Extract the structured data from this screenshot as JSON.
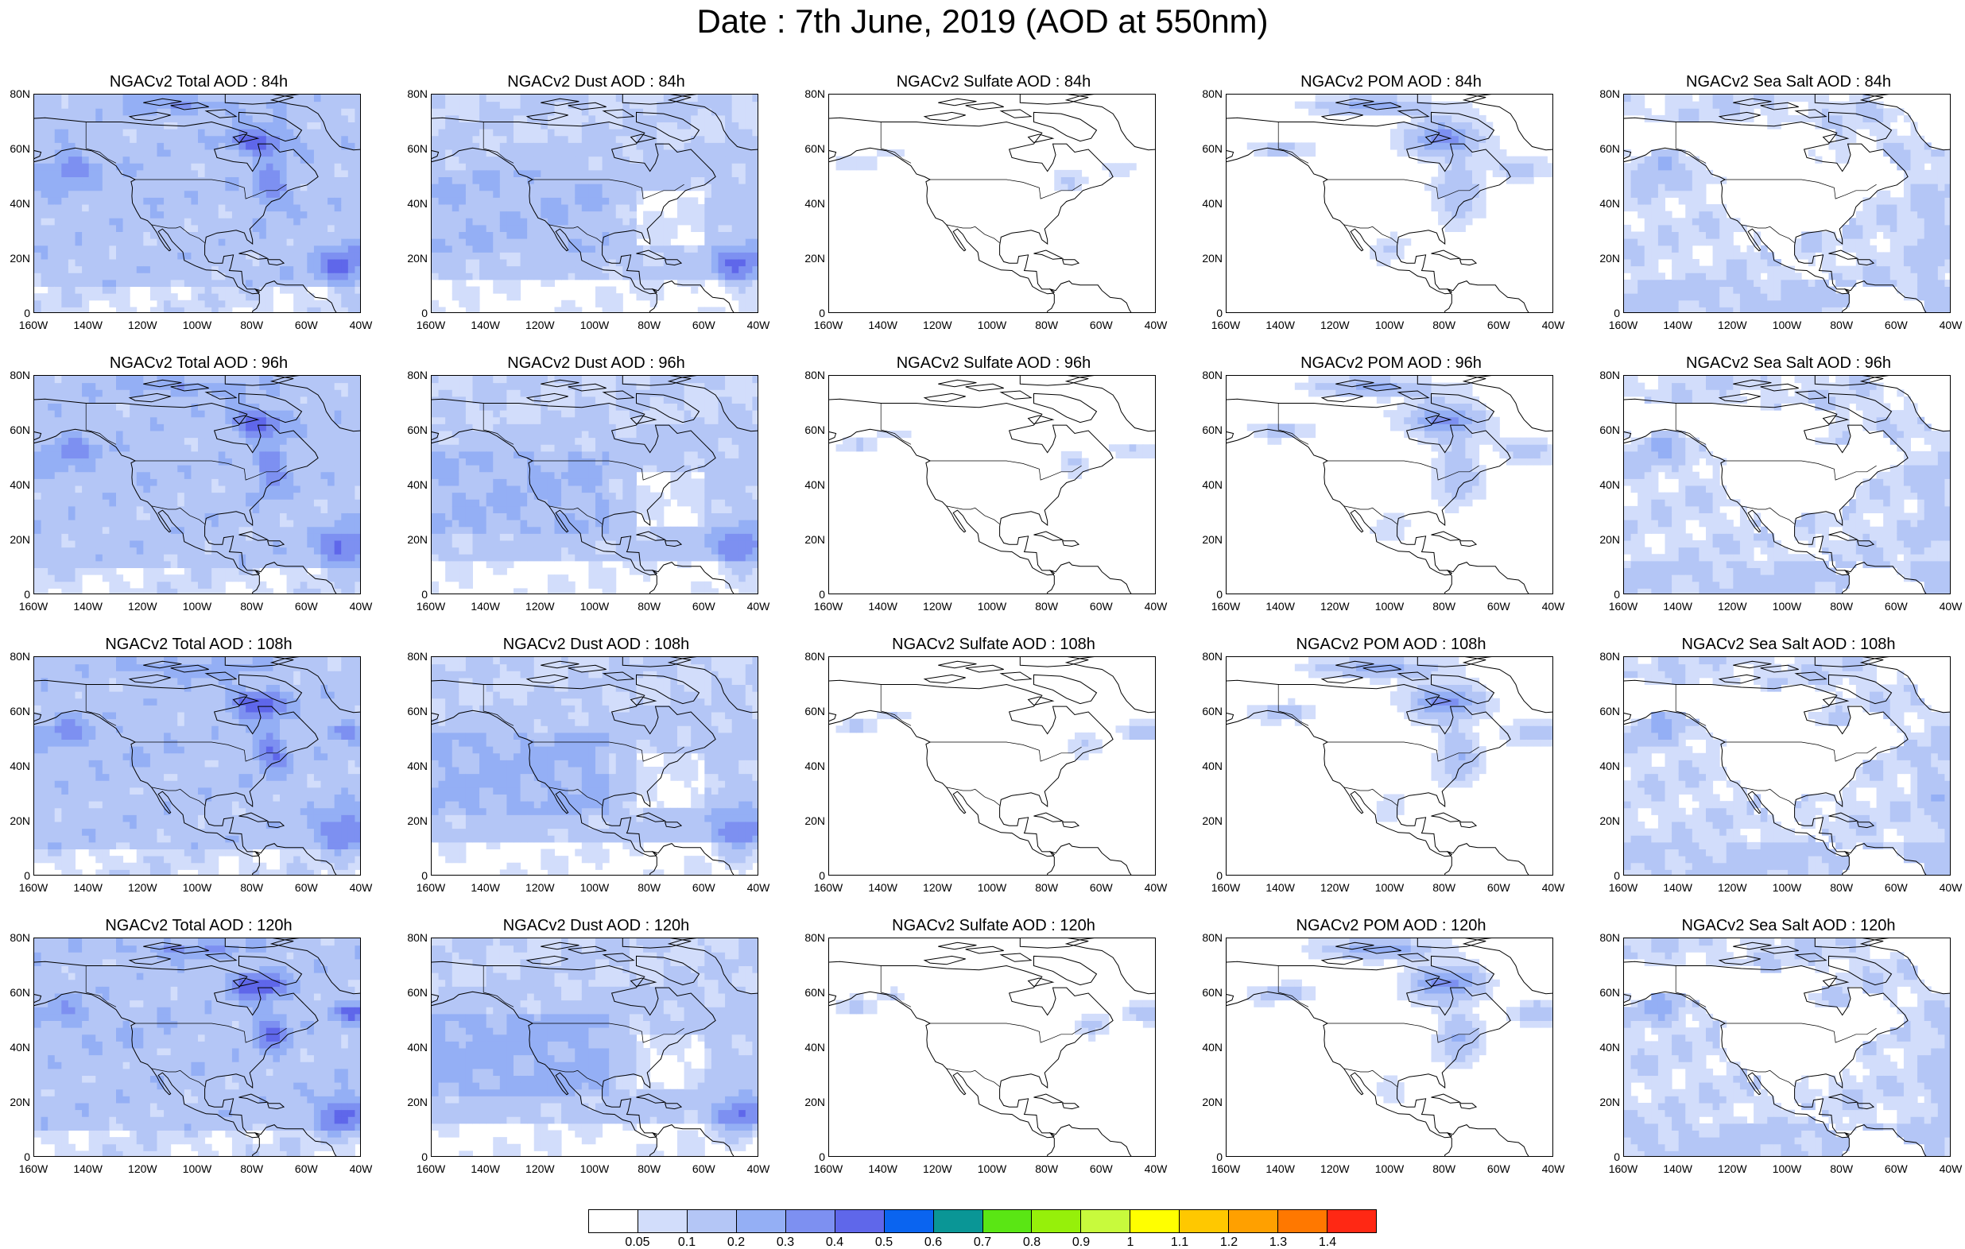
{
  "title": "Date : 7th June, 2019 (AOD at 550nm)",
  "lat_labels": [
    "80N",
    "60N",
    "40N",
    "20N",
    "0"
  ],
  "lon_labels": [
    "160W",
    "140W",
    "120W",
    "100W",
    "80W",
    "60W",
    "40W"
  ],
  "panels": [
    {
      "title": "NGACv2 Total AOD : 84h",
      "species": "total",
      "hour": 84
    },
    {
      "title": "NGACv2 Dust AOD : 84h",
      "species": "dust",
      "hour": 84
    },
    {
      "title": "NGACv2 Sulfate AOD : 84h",
      "species": "sulfate",
      "hour": 84
    },
    {
      "title": "NGACv2 POM AOD : 84h",
      "species": "pom",
      "hour": 84
    },
    {
      "title": "NGACv2 Sea Salt AOD : 84h",
      "species": "seasalt",
      "hour": 84
    },
    {
      "title": "NGACv2 Total AOD : 96h",
      "species": "total",
      "hour": 96
    },
    {
      "title": "NGACv2 Dust AOD : 96h",
      "species": "dust",
      "hour": 96
    },
    {
      "title": "NGACv2 Sulfate AOD : 96h",
      "species": "sulfate",
      "hour": 96
    },
    {
      "title": "NGACv2 POM AOD : 96h",
      "species": "pom",
      "hour": 96
    },
    {
      "title": "NGACv2 Sea Salt AOD : 96h",
      "species": "seasalt",
      "hour": 96
    },
    {
      "title": "NGACv2 Total AOD : 108h",
      "species": "total",
      "hour": 108
    },
    {
      "title": "NGACv2 Dust AOD : 108h",
      "species": "dust",
      "hour": 108
    },
    {
      "title": "NGACv2 Sulfate AOD : 108h",
      "species": "sulfate",
      "hour": 108
    },
    {
      "title": "NGACv2 POM AOD : 108h",
      "species": "pom",
      "hour": 108
    },
    {
      "title": "NGACv2 Sea Salt AOD : 108h",
      "species": "seasalt",
      "hour": 108
    },
    {
      "title": "NGACv2 Total AOD : 120h",
      "species": "total",
      "hour": 120
    },
    {
      "title": "NGACv2 Dust AOD : 120h",
      "species": "dust",
      "hour": 120
    },
    {
      "title": "NGACv2 Sulfate AOD : 120h",
      "species": "sulfate",
      "hour": 120
    },
    {
      "title": "NGACv2 POM AOD : 120h",
      "species": "pom",
      "hour": 120
    },
    {
      "title": "NGACv2 Sea Salt  AOD : 120h",
      "species": "seasalt",
      "hour": 120
    }
  ],
  "colorbar": {
    "colors": [
      "#ffffff",
      "#d2ddfb",
      "#b4c6f6",
      "#94aff5",
      "#7d90f1",
      "#5f67ea",
      "#0a64f0",
      "#0a9696",
      "#5ae614",
      "#96f00a",
      "#c8fa3c",
      "#ffff00",
      "#ffc800",
      "#ffa000",
      "#ff7800",
      "#ff2814"
    ],
    "labels": [
      "0.05",
      "0.1",
      "0.2",
      "0.3",
      "0.4",
      "0.5",
      "0.6",
      "0.7",
      "0.8",
      "0.9",
      "1",
      "1.1",
      "1.2",
      "1.3",
      "1.4"
    ]
  }
}
